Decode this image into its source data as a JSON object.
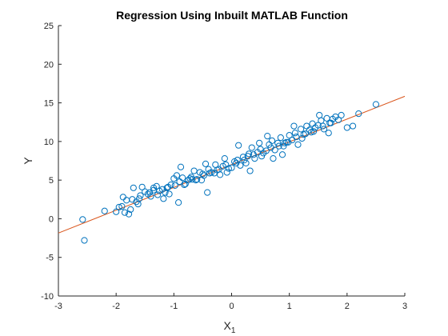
{
  "chart_data": {
    "type": "scatter",
    "title": "Regression Using Inbuilt MATLAB Function",
    "xlabel": "X",
    "xlabel_subscript": "1",
    "ylabel": "Y",
    "xlim": [
      -3,
      3
    ],
    "ylim": [
      -10,
      25
    ],
    "xticks": [
      -3,
      -2,
      -1,
      0,
      1,
      2,
      3
    ],
    "yticks": [
      -10,
      -5,
      0,
      5,
      10,
      15,
      20,
      25
    ],
    "grid": false,
    "box": false,
    "colors": {
      "points": "#0072BD",
      "fit_line": "#D95319",
      "axes": "#262626",
      "title": "#000000"
    },
    "fit_line": {
      "slope": 2.95,
      "intercept": 7.0,
      "x_range": [
        -3,
        3
      ]
    },
    "series": [
      {
        "marker": "open-circle",
        "x": [
          -2.58,
          -2.55,
          -2.2,
          -2.0,
          -1.95,
          -1.9,
          -1.85,
          -1.82,
          -1.78,
          -1.75,
          -1.7,
          -1.65,
          -1.6,
          -1.55,
          -1.5,
          -1.45,
          -1.4,
          -1.35,
          -1.3,
          -1.25,
          -1.2,
          -1.15,
          -1.1,
          -1.05,
          -1.0,
          -0.95,
          -0.9,
          -0.85,
          -0.8,
          -0.75,
          -0.7,
          -0.65,
          -0.6,
          -0.55,
          -0.5,
          -0.45,
          -0.4,
          -0.35,
          -0.3,
          -0.25,
          -0.2,
          -0.15,
          -0.1,
          -0.05,
          0.0,
          0.05,
          0.1,
          0.15,
          0.2,
          0.25,
          0.3,
          0.35,
          0.4,
          0.45,
          0.5,
          0.55,
          0.6,
          0.65,
          0.7,
          0.75,
          0.8,
          0.85,
          0.9,
          0.95,
          1.0,
          1.05,
          1.1,
          1.15,
          1.2,
          1.25,
          1.3,
          1.35,
          1.4,
          1.45,
          1.5,
          1.55,
          1.6,
          1.65,
          1.7,
          1.75,
          1.8,
          1.85,
          1.9,
          2.0,
          2.1,
          2.2,
          2.5,
          -1.88,
          -1.72,
          -1.58,
          -1.42,
          -1.28,
          -1.12,
          -0.98,
          -0.82,
          -0.68,
          -0.52,
          -0.38,
          -0.22,
          -0.08,
          0.08,
          0.22,
          0.38,
          0.52,
          0.68,
          0.82,
          0.98,
          1.12,
          1.28,
          1.42,
          1.58,
          1.72,
          -1.62,
          -1.35,
          -1.08,
          -0.92,
          -0.72,
          -0.42,
          -0.28,
          0.12,
          0.32,
          0.48,
          0.72,
          0.88,
          1.08,
          1.22,
          1.38,
          1.52,
          1.68,
          -0.62,
          -0.12,
          0.62,
          -1.18,
          -0.88,
          -0.48,
          0.28,
          0.92
        ],
        "y": [
          -0.1,
          -2.8,
          1.0,
          0.9,
          1.5,
          1.6,
          0.8,
          2.4,
          0.6,
          1.2,
          4.0,
          2.2,
          2.6,
          4.1,
          3.5,
          3.2,
          2.9,
          4.0,
          4.2,
          3.6,
          3.8,
          3.4,
          4.1,
          4.4,
          5.2,
          5.6,
          4.8,
          5.3,
          4.5,
          5.0,
          5.4,
          6.2,
          5.1,
          6.0,
          5.8,
          7.1,
          6.4,
          6.0,
          5.9,
          6.3,
          5.7,
          6.8,
          7.0,
          6.5,
          6.6,
          7.4,
          7.6,
          6.9,
          8.0,
          7.2,
          8.4,
          9.2,
          7.8,
          8.6,
          9.0,
          8.5,
          8.8,
          9.6,
          10.1,
          8.9,
          9.8,
          10.5,
          9.4,
          9.9,
          10.8,
          10.2,
          11.1,
          9.6,
          11.6,
          10.9,
          12.0,
          11.5,
          12.3,
          11.8,
          12.1,
          12.7,
          11.6,
          13.0,
          12.4,
          12.9,
          13.2,
          12.8,
          13.4,
          11.8,
          12.0,
          13.6,
          14.8,
          2.8,
          2.5,
          3.0,
          3.4,
          3.1,
          4.0,
          4.3,
          4.4,
          5.1,
          5.0,
          5.9,
          6.4,
          6.0,
          7.2,
          7.6,
          8.3,
          8.1,
          9.2,
          9.4,
          9.9,
          10.6,
          11.0,
          11.3,
          12.0,
          12.4,
          1.9,
          3.7,
          3.2,
          2.1,
          5.2,
          3.4,
          7.0,
          9.5,
          6.2,
          9.8,
          7.8,
          8.3,
          12.0,
          10.4,
          11.2,
          13.4,
          11.1,
          5.0,
          7.8,
          10.7,
          2.6,
          6.7,
          5.6,
          8.1,
          9.8
        ]
      }
    ]
  }
}
